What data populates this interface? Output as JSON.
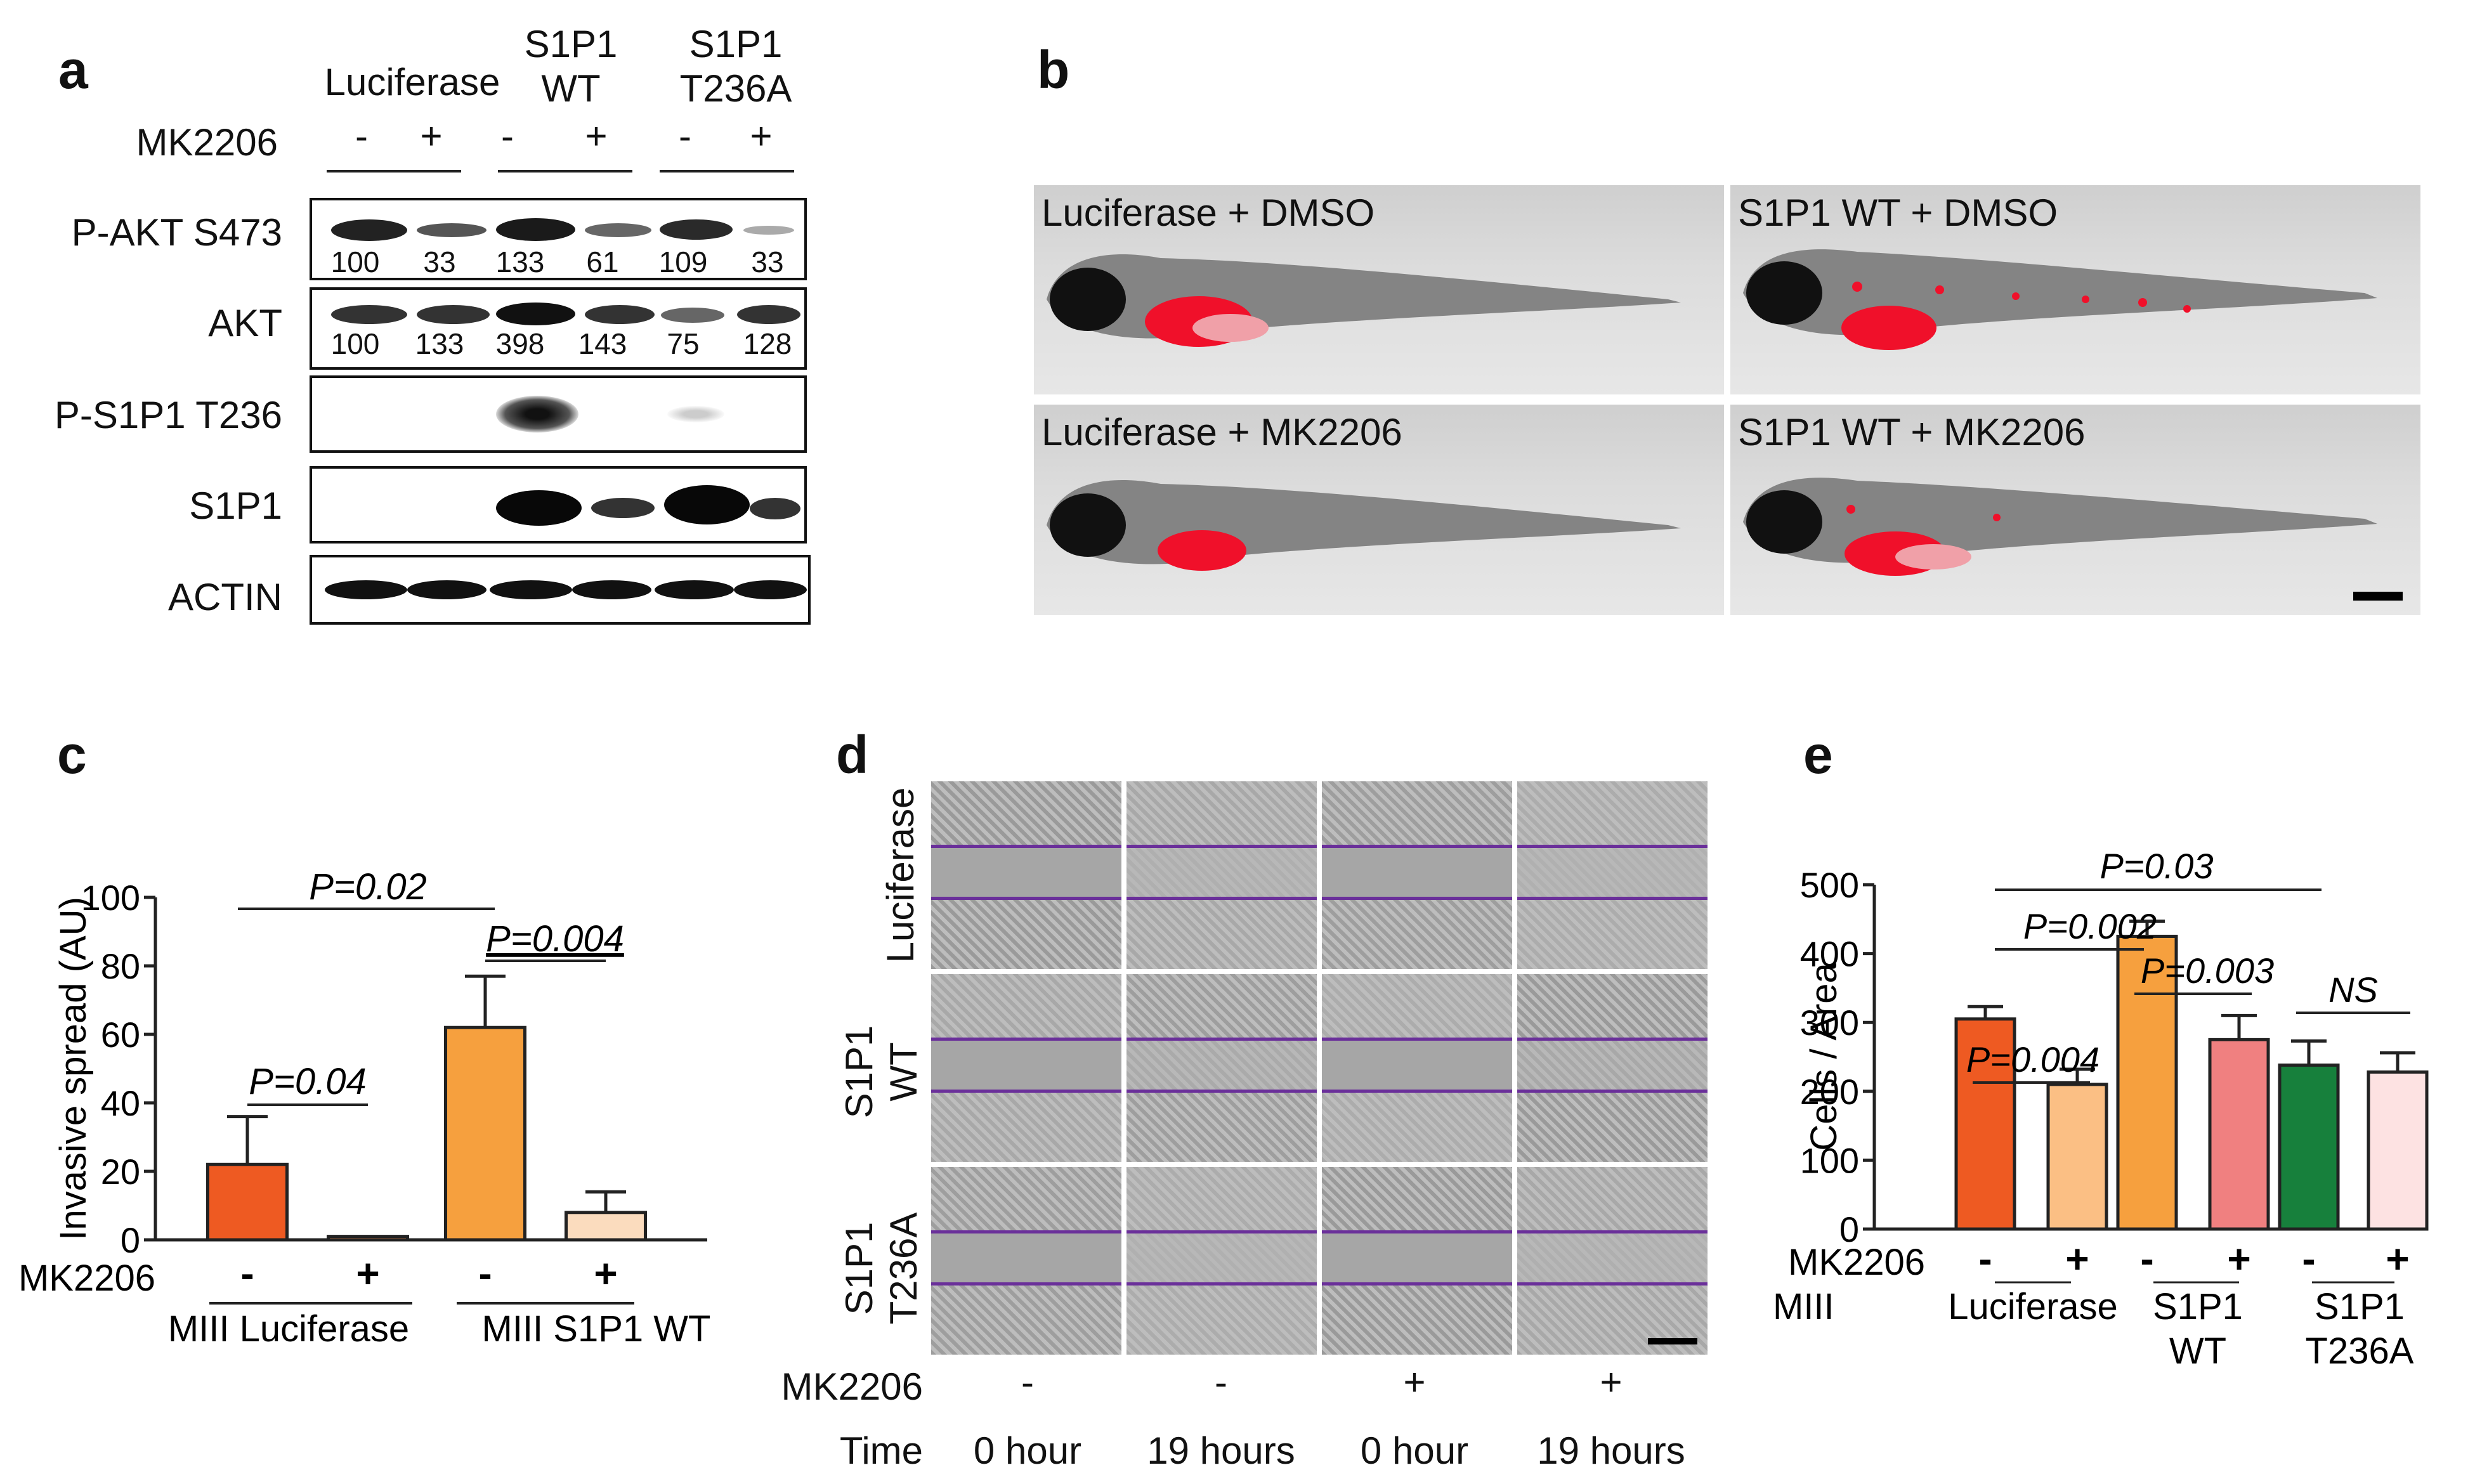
{
  "panels": {
    "a": "a",
    "b": "b",
    "c": "c",
    "d": "d",
    "e": "e"
  },
  "panel_a": {
    "groups": {
      "luciferase": "Luciferase",
      "wt_line1": "S1P1",
      "wt_line2": "WT",
      "t236a_line1": "S1P1",
      "t236a_line2": "T236A"
    },
    "treatment_label": "MK2206",
    "signs": [
      "-",
      "+",
      "-",
      "+",
      "-",
      "+"
    ],
    "rows": {
      "pakt": "P-AKT S473",
      "akt": "AKT",
      "ps1p1": "P-S1P1 T236",
      "s1p1": "S1P1",
      "actin": "ACTIN"
    },
    "pakt_values": [
      "100",
      "33",
      "133",
      "61",
      "109",
      "33"
    ],
    "akt_values": [
      "100",
      "133",
      "398",
      "143",
      "75",
      "128"
    ]
  },
  "panel_b": {
    "tl": "Luciferase + DMSO",
    "tr": "S1P1 WT + DMSO",
    "bl": "Luciferase + MK2206",
    "br": "S1P1 WT + MK2206"
  },
  "panel_c": {
    "chart_data": {
      "type": "bar",
      "ylabel": "Invasive spread (AU)",
      "ylim": [
        0,
        100
      ],
      "yticks": [
        "0",
        "20",
        "40",
        "60",
        "80",
        "100"
      ],
      "categories": [
        "MIII Luciferase -",
        "MIII Luciferase +",
        "MIII S1P1 WT -",
        "MIII S1P1 WT +"
      ],
      "values": [
        22,
        1,
        62,
        8
      ],
      "errors": [
        14,
        0,
        15,
        6
      ],
      "colors": [
        "#ee5a22",
        "#f08a4b",
        "#f6a03e",
        "#fbdcbe"
      ],
      "pvalues": {
        "p1": "P=0.04",
        "p2": "P=0.004",
        "p3": "P=0.02"
      },
      "treatment_label": "MK2206",
      "signs": [
        "-",
        "+",
        "-",
        "+"
      ],
      "groups": [
        "MIII Luciferase",
        "MIII S1P1 WT"
      ]
    }
  },
  "panel_d": {
    "rows": {
      "r1": "Luciferase",
      "r2_1": "S1P1",
      "r2_2": "WT",
      "r3_1": "S1P1",
      "r3_2": "T236A"
    },
    "treatment_label": "MK2206",
    "signs": [
      "-",
      "-",
      "+",
      "+"
    ],
    "time_label": "Time",
    "times": [
      "0 hour",
      "19 hours",
      "0 hour",
      "19 hours"
    ]
  },
  "panel_e": {
    "chart_data": {
      "type": "bar",
      "ylabel": "Cells / Area",
      "ylim": [
        0,
        500
      ],
      "yticks": [
        "0",
        "100",
        "200",
        "300",
        "400",
        "500"
      ],
      "categories": [
        "Luciferase -",
        "Luciferase +",
        "S1P1 WT -",
        "S1P1 WT +",
        "S1P1 T236A -",
        "S1P1 T236A +"
      ],
      "values": [
        305,
        210,
        425,
        275,
        238,
        228
      ],
      "errors": [
        18,
        22,
        22,
        35,
        35,
        28
      ],
      "colors": [
        "#ee5a22",
        "#fbbf84",
        "#f6a03e",
        "#f08080",
        "#17803c",
        "#fde2e2"
      ],
      "pvalues": {
        "p1": "P=0.004",
        "p2": "P=0.003",
        "p3": "NS",
        "p4": "P=0.002",
        "p5": "P=0.03"
      },
      "treatment_label": "MK2206",
      "cell_label": "MIII",
      "signs": [
        "-",
        "+",
        "-",
        "+",
        "-",
        "+"
      ],
      "groups": {
        "g1": "Luciferase",
        "g2_1": "S1P1",
        "g2_2": "WT",
        "g3_1": "S1P1",
        "g3_2": "T236A"
      }
    }
  }
}
